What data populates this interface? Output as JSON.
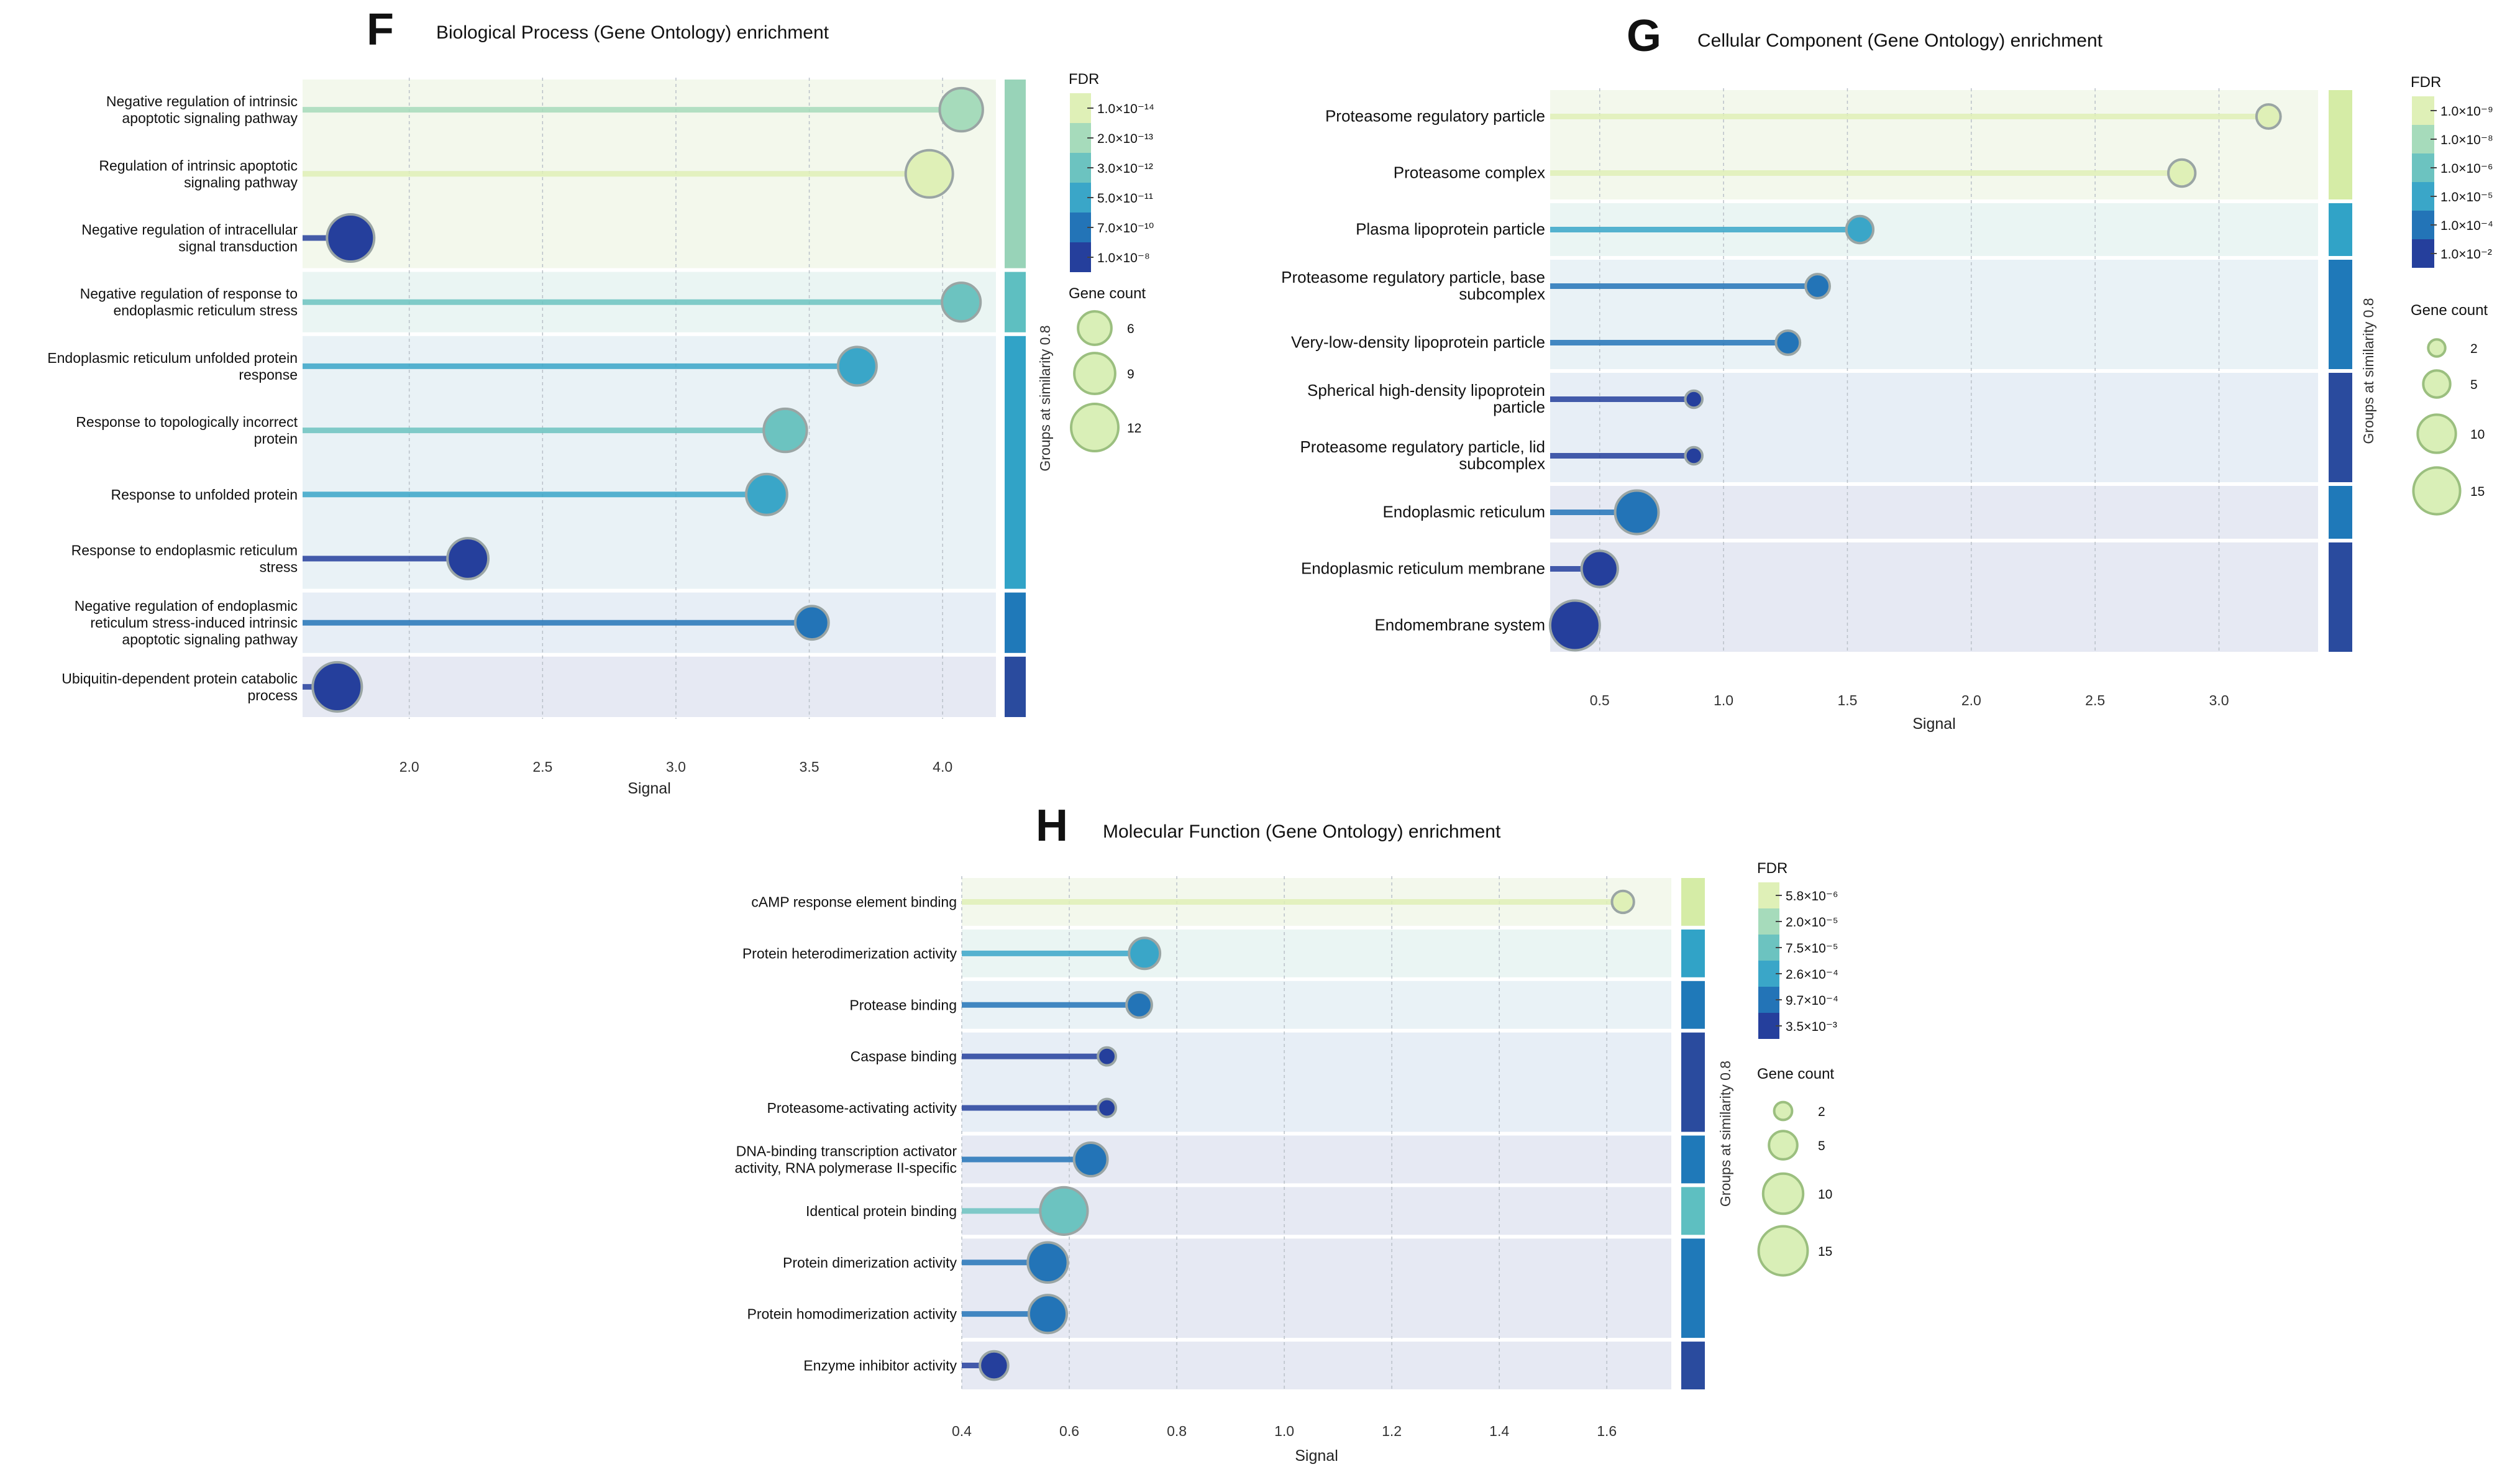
{
  "colors": {
    "fdr": [
      "#dff0b7",
      "#a6dbbb",
      "#6cc3c0",
      "#3aa6c8",
      "#2374b7",
      "#253f9c"
    ],
    "group_bg": [
      "#f3f8ec",
      "#eaf5f3",
      "#e9f2f6",
      "#e7eef6",
      "#e6e9f3"
    ],
    "group_bar": [
      "#d5eca6",
      "#98d3b8",
      "#5ebfc1",
      "#31a3c7",
      "#1f79b9",
      "#2a4b9e"
    ],
    "bubble_stroke": "#9aa5a4",
    "legend_bubble_fill": "#d9efb7",
    "legend_bubble_stroke": "#9bbf7f"
  },
  "chart_data": [
    {
      "id": "F",
      "letter": "F",
      "type": "lollipop",
      "title": "Biological Process (Gene Ontology) enrichment",
      "xlabel": "Signal",
      "xlim": [
        1.6,
        4.2
      ],
      "xticks": [
        "2.0",
        "2.5",
        "3.0",
        "3.5",
        "4.0"
      ],
      "side_label": "Groups at similarity 0.8",
      "categories": [
        [
          "Negative regulation of intrinsic",
          "apoptotic signaling pathway"
        ],
        [
          "Regulation of intrinsic apoptotic",
          "signaling pathway"
        ],
        [
          "Negative regulation of intracellular",
          "signal transduction"
        ],
        [
          "Negative regulation of response to",
          "endoplasmic reticulum stress"
        ],
        [
          "Endoplasmic reticulum unfolded protein",
          "response"
        ],
        [
          "Response to topologically incorrect",
          "protein"
        ],
        [
          "Response to unfolded protein"
        ],
        [
          "Response to endoplasmic reticulum",
          "stress"
        ],
        [
          "Negative regulation of endoplasmic",
          "reticulum stress-induced intrinsic",
          "apoptotic signaling pathway"
        ],
        [
          "Ubiquitin-dependent protein catabolic",
          "process"
        ]
      ],
      "signal": [
        4.07,
        3.95,
        1.78,
        4.07,
        3.68,
        3.41,
        3.34,
        2.22,
        3.51,
        1.73
      ],
      "fdr_level": [
        1,
        0,
        5,
        2,
        3,
        2,
        3,
        5,
        4,
        5
      ],
      "gene_count": [
        10,
        12,
        12,
        8,
        8,
        10,
        9,
        9,
        6,
        13
      ],
      "groups": [
        [
          0,
          2,
          1
        ],
        [
          3,
          3,
          2
        ],
        [
          4,
          7,
          3
        ],
        [
          8,
          8,
          4
        ],
        [
          9,
          9,
          5
        ]
      ],
      "fdr_legend": {
        "title": "FDR",
        "labels": [
          "1.0×10⁻¹⁴",
          "2.0×10⁻¹³",
          "3.0×10⁻¹²",
          "5.0×10⁻¹¹",
          "7.0×10⁻¹⁰",
          "1.0×10⁻⁸"
        ]
      },
      "size_legend": {
        "title": "Gene count",
        "values": [
          6,
          9,
          12
        ]
      }
    },
    {
      "id": "G",
      "letter": "G",
      "type": "lollipop",
      "title": "Cellular Component (Gene Ontology) enrichment",
      "xlabel": "Signal",
      "xlim": [
        0.3,
        3.4
      ],
      "xticks": [
        "0.5",
        "1.0",
        "1.5",
        "2.0",
        "2.5",
        "3.0"
      ],
      "side_label": "Groups at similarity 0.8",
      "categories": [
        [
          "Proteasome regulatory particle"
        ],
        [
          "Proteasome complex"
        ],
        [
          "Plasma lipoprotein particle"
        ],
        [
          "Proteasome regulatory particle, base",
          "subcomplex"
        ],
        [
          "Very-low-density lipoprotein particle"
        ],
        [
          "Spherical high-density lipoprotein",
          "particle"
        ],
        [
          "Proteasome regulatory particle, lid",
          "subcomplex"
        ],
        [
          "Endoplasmic reticulum"
        ],
        [
          "Endoplasmic reticulum membrane"
        ],
        [
          "Endomembrane system"
        ]
      ],
      "signal": [
        3.2,
        2.85,
        1.55,
        1.38,
        1.26,
        0.88,
        0.88,
        0.65,
        0.5,
        0.4
      ],
      "fdr_level": [
        0,
        0,
        3,
        4,
        4,
        5,
        5,
        4,
        5,
        5
      ],
      "gene_count": [
        4,
        5,
        5,
        4,
        4,
        2,
        2,
        13,
        9,
        17
      ],
      "groups": [
        [
          0,
          1,
          0
        ],
        [
          2,
          2,
          3
        ],
        [
          3,
          4,
          4
        ],
        [
          5,
          6,
          5
        ],
        [
          7,
          7,
          4
        ],
        [
          8,
          9,
          5
        ]
      ],
      "fdr_legend": {
        "title": "FDR",
        "labels": [
          "1.0×10⁻⁹",
          "1.0×10⁻⁸",
          "1.0×10⁻⁶",
          "1.0×10⁻⁵",
          "1.0×10⁻⁴",
          "1.0×10⁻²"
        ]
      },
      "size_legend": {
        "title": "Gene count",
        "values": [
          2,
          5,
          10,
          15
        ]
      }
    },
    {
      "id": "H",
      "letter": "H",
      "type": "lollipop",
      "title": "Molecular Function (Gene Ontology) enrichment",
      "xlabel": "Signal",
      "xlim": [
        0.4,
        1.72
      ],
      "xticks": [
        "0.4",
        "0.6",
        "0.8",
        "1.0",
        "1.2",
        "1.4",
        "1.6"
      ],
      "xtick_values": [
        0.4,
        0.6,
        0.8,
        1.0,
        1.2,
        1.4,
        1.6
      ],
      "side_label": "Groups at similarity 0.8",
      "categories": [
        [
          "cAMP response element binding"
        ],
        [
          "Protein heterodimerization activity"
        ],
        [
          "Protease binding"
        ],
        [
          "Caspase binding"
        ],
        [
          "Proteasome-activating activity"
        ],
        [
          "DNA-binding transcription activator",
          "activity, RNA polymerase II-specific"
        ],
        [
          "Identical protein binding"
        ],
        [
          "Protein dimerization activity"
        ],
        [
          "Protein homodimerization activity"
        ],
        [
          "Enzyme inhibitor activity"
        ]
      ],
      "signal": [
        1.63,
        0.74,
        0.73,
        0.67,
        0.67,
        0.64,
        0.59,
        0.56,
        0.56,
        0.46
      ],
      "fdr_level": [
        0,
        3,
        4,
        5,
        5,
        4,
        2,
        4,
        4,
        5
      ],
      "gene_count": [
        3,
        6,
        4,
        2,
        2,
        7,
        14,
        10,
        9,
        5
      ],
      "groups": [
        [
          0,
          0,
          0
        ],
        [
          1,
          1,
          3
        ],
        [
          2,
          2,
          4
        ],
        [
          3,
          4,
          5
        ],
        [
          5,
          5,
          4
        ],
        [
          6,
          6,
          2
        ],
        [
          7,
          8,
          4
        ],
        [
          9,
          9,
          5
        ]
      ],
      "fdr_legend": {
        "title": "FDR",
        "labels": [
          "5.8×10⁻⁶",
          "2.0×10⁻⁵",
          "7.5×10⁻⁵",
          "2.6×10⁻⁴",
          "9.7×10⁻⁴",
          "3.5×10⁻³"
        ]
      },
      "size_legend": {
        "title": "Gene count",
        "values": [
          2,
          5,
          10,
          15
        ]
      }
    }
  ]
}
